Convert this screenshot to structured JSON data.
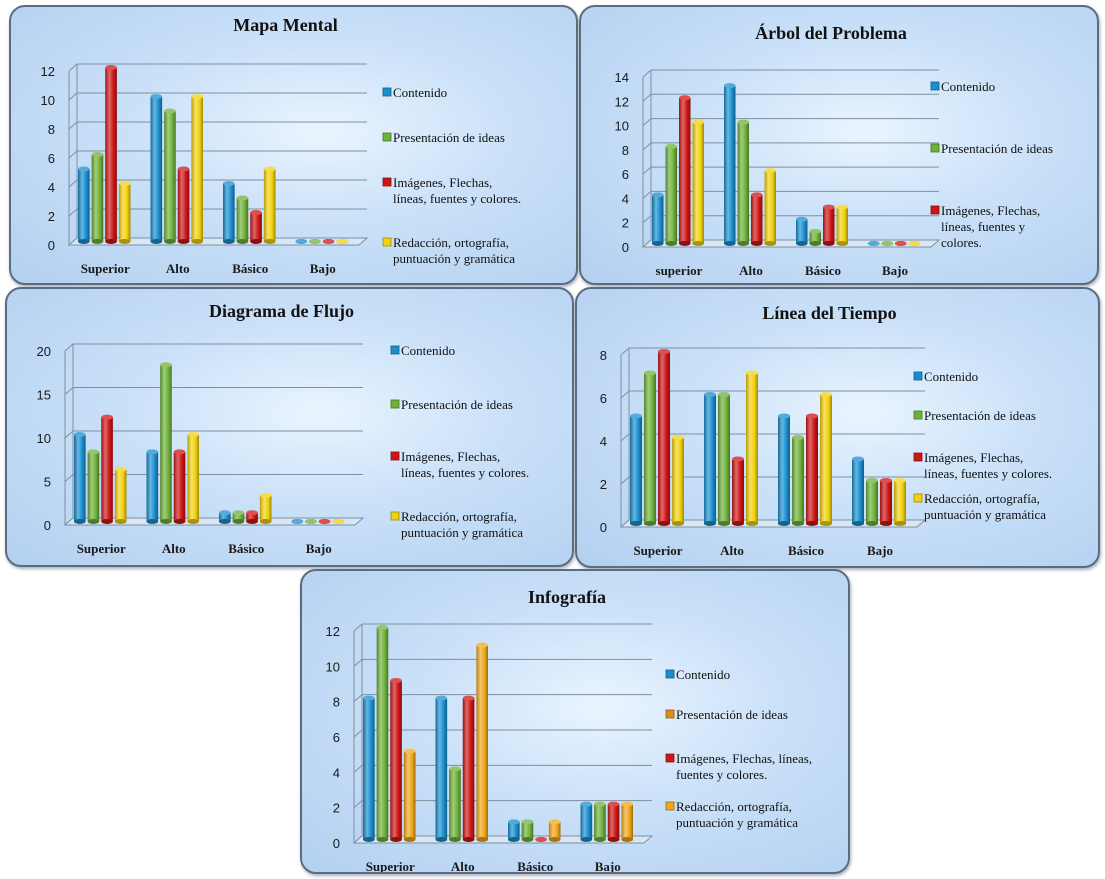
{
  "colors": {
    "contenido": "#1a8fd0",
    "presentacion": "#6fb23a",
    "imagenes": "#cf1616",
    "redaccion": "#f2d20e",
    "infografia_presentacion": "#d9901a",
    "infografia_redaccion": "#f0a818",
    "axis_text": "#1a1a1a",
    "grid": "#7f8f9f"
  },
  "chart_data": [
    {
      "type": "bar",
      "title": "Mapa Mental",
      "categories": [
        "Superior",
        "Alto",
        "Básico",
        "Bajo"
      ],
      "ylim": [
        0,
        12
      ],
      "yticks": [
        "0",
        "2",
        "4",
        "6",
        "8",
        "10",
        "12"
      ],
      "legend_position": "right",
      "series": [
        {
          "name": "Contenido",
          "values": [
            5,
            10,
            4,
            0
          ]
        },
        {
          "name": "Presentación de ideas",
          "values": [
            6,
            9,
            3,
            0
          ]
        },
        {
          "name": "Imágenes, Flechas, líneas, fuentes y colores.",
          "values": [
            12,
            5,
            2,
            0
          ]
        },
        {
          "name": "Redacción, ortografía, puntuación y gramática",
          "values": [
            4,
            10,
            5,
            0
          ]
        }
      ]
    },
    {
      "type": "bar",
      "title": "Árbol del Problema",
      "categories": [
        "superior",
        "Alto",
        "Básico",
        "Bajo"
      ],
      "ylim": [
        0,
        14
      ],
      "yticks": [
        "0",
        "2",
        "4",
        "6",
        "8",
        "10",
        "12",
        "14"
      ],
      "legend_position": "right",
      "series": [
        {
          "name": "Contenido",
          "values": [
            4,
            13,
            2,
            0
          ]
        },
        {
          "name": "Presentación de ideas",
          "values": [
            8,
            10,
            1,
            0
          ]
        },
        {
          "name": "Imágenes, Flechas, líneas, fuentes y colores.",
          "values": [
            12,
            4,
            3,
            0
          ]
        },
        {
          "name": "",
          "values": [
            10,
            6,
            3,
            0
          ]
        }
      ]
    },
    {
      "type": "bar",
      "title": "Diagrama de Flujo",
      "categories": [
        "Superior",
        "Alto",
        "Básico",
        "Bajo"
      ],
      "ylim": [
        0,
        20
      ],
      "yticks": [
        "0",
        "5",
        "10",
        "15",
        "20"
      ],
      "legend_position": "right",
      "series": [
        {
          "name": "Contenido",
          "values": [
            10,
            8,
            1,
            0
          ]
        },
        {
          "name": "Presentación de ideas",
          "values": [
            8,
            18,
            1,
            0
          ]
        },
        {
          "name": "Imágenes, Flechas, líneas, fuentes y colores.",
          "values": [
            12,
            8,
            1,
            0
          ]
        },
        {
          "name": "Redacción, ortografía, puntuación y gramática",
          "values": [
            6,
            10,
            3,
            0
          ]
        }
      ]
    },
    {
      "type": "bar",
      "title": "Línea del Tiempo",
      "categories": [
        "Superior",
        "Alto",
        "Básico",
        "Bajo"
      ],
      "ylim": [
        0,
        8
      ],
      "yticks": [
        "0",
        "2",
        "4",
        "6",
        "8"
      ],
      "legend_position": "right",
      "series": [
        {
          "name": "Contenido",
          "values": [
            5,
            6,
            5,
            3
          ]
        },
        {
          "name": "Presentación de ideas",
          "values": [
            7,
            6,
            4,
            2
          ]
        },
        {
          "name": "Imágenes, Flechas, líneas, fuentes y colores.",
          "values": [
            8,
            3,
            5,
            2
          ]
        },
        {
          "name": "Redacción, ortografía, puntuación y gramática",
          "values": [
            4,
            7,
            6,
            2
          ]
        }
      ]
    },
    {
      "type": "bar",
      "title": "Infografía",
      "categories": [
        "Superior",
        "Alto",
        "Básico",
        "Bajo"
      ],
      "ylim": [
        0,
        12
      ],
      "yticks": [
        "0",
        "2",
        "4",
        "6",
        "8",
        "10",
        "12"
      ],
      "legend_position": "right",
      "series": [
        {
          "name": "Contenido",
          "values": [
            8,
            8,
            1,
            2
          ]
        },
        {
          "name": "Presentación de ideas",
          "values": [
            12,
            4,
            1,
            2
          ]
        },
        {
          "name": "Imágenes, Flechas, líneas, fuentes y colores.",
          "values": [
            9,
            8,
            0,
            2
          ]
        },
        {
          "name": "Redacción, ortografía, puntuación y gramática",
          "values": [
            5,
            11,
            1,
            2
          ]
        }
      ]
    }
  ]
}
